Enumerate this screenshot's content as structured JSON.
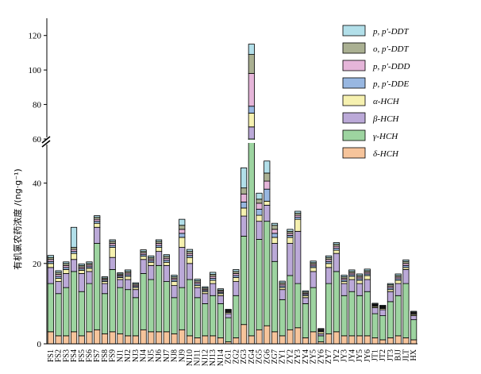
{
  "chart_data": {
    "type": "stacked-bar",
    "ylabel": "有机氯农药浓度 /(ng·g⁻¹)",
    "y_break": [
      50,
      60
    ],
    "ylim": [
      0,
      130
    ],
    "lower_ticks": [
      0,
      20,
      40
    ],
    "upper_ticks": [
      60,
      80,
      100,
      120
    ],
    "categories": [
      "FS1",
      "FS2",
      "FS3",
      "FS4",
      "FS5",
      "FS6",
      "FS7",
      "FS8",
      "FS9",
      "NJ1",
      "NJ2",
      "NJ3",
      "NJ4",
      "NJ5",
      "NJ6",
      "NJ7",
      "NJ8",
      "NJ9",
      "NJ10",
      "NJ11",
      "NJ12",
      "NJ13",
      "NJ14",
      "ZG1",
      "ZG2",
      "ZG3",
      "ZG4",
      "ZG5",
      "ZG6",
      "ZG7",
      "ZY1",
      "ZY2",
      "ZY3",
      "ZY4",
      "ZY5",
      "ZY6",
      "ZY7",
      "JY2",
      "JY3",
      "JY4",
      "JY5",
      "JY6",
      "JT1",
      "JT2",
      "JT3",
      "BJJ",
      "JLT",
      "HX"
    ],
    "series": [
      {
        "name": "δ-HCH",
        "label": "δ-HCH",
        "color": "#f6c49b",
        "values": [
          3.0,
          2.0,
          2.0,
          3.0,
          2.0,
          3.0,
          3.5,
          2.5,
          3.0,
          2.5,
          2.0,
          2.0,
          3.5,
          3.0,
          3.0,
          3.0,
          2.5,
          3.5,
          2.0,
          1.5,
          2.0,
          2.0,
          1.5,
          0.5,
          1.5,
          4.8,
          2.0,
          3.5,
          4.5,
          3.0,
          2.0,
          3.5,
          4.0,
          1.5,
          3.0,
          0.5,
          2.5,
          3.0,
          2.0,
          2.0,
          2.0,
          2.0,
          1.5,
          1.0,
          1.5,
          2.0,
          1.5,
          1.0
        ]
      },
      {
        "name": "γ-HCH",
        "label": "γ-HCH",
        "color": "#9dd4a0",
        "values": [
          12.0,
          10.5,
          12.0,
          15.0,
          11.0,
          12.0,
          21.5,
          10.0,
          15.5,
          11.5,
          11.5,
          9.5,
          14.0,
          13.0,
          16.5,
          12.5,
          9.0,
          10.5,
          14.0,
          10.0,
          8.0,
          10.0,
          8.5,
          6.0,
          10.5,
          22.0,
          58.0,
          22.5,
          26.0,
          17.5,
          9.0,
          13.5,
          11.0,
          8.5,
          11.0,
          1.5,
          12.5,
          15.0,
          10.0,
          11.0,
          10.0,
          11.0,
          6.0,
          6.0,
          9.0,
          10.0,
          13.5,
          5.0
        ]
      },
      {
        "name": "β-HCH",
        "label": "β-HCH",
        "color": "#bba9d8",
        "values": [
          4.0,
          3.0,
          3.5,
          3.0,
          4.5,
          3.0,
          4.0,
          2.5,
          3.0,
          2.0,
          2.5,
          2.0,
          3.5,
          3.5,
          3.5,
          4.0,
          3.0,
          10.0,
          4.0,
          2.5,
          2.5,
          3.0,
          2.0,
          1.0,
          3.5,
          5.0,
          7.0,
          4.5,
          4.0,
          4.5,
          2.5,
          8.0,
          13.0,
          1.5,
          4.0,
          0.5,
          4.0,
          4.5,
          3.0,
          3.0,
          3.0,
          3.0,
          1.5,
          1.5,
          2.5,
          3.0,
          3.5,
          1.0
        ]
      },
      {
        "name": "α-HCH",
        "label": "α-HCH",
        "color": "#f6f1b0",
        "values": [
          1.0,
          0.8,
          1.0,
          1.5,
          0.8,
          0.8,
          1.0,
          0.5,
          2.5,
          0.5,
          0.8,
          0.5,
          0.8,
          0.8,
          1.0,
          0.8,
          1.0,
          2.5,
          1.5,
          0.5,
          0.5,
          0.8,
          0.5,
          0.3,
          1.0,
          2.0,
          8.0,
          1.5,
          1.0,
          1.5,
          0.5,
          1.5,
          3.0,
          0.5,
          1.0,
          0.5,
          1.0,
          0.8,
          0.5,
          0.8,
          0.8,
          1.0,
          0.3,
          0.3,
          0.5,
          0.8,
          0.5,
          0.3
        ]
      },
      {
        "name": "p,p'-DDE",
        "label": "p, p′-DDE",
        "color": "#98b7e1",
        "values": [
          0.5,
          0.5,
          0.5,
          0.5,
          0.4,
          0.4,
          0.5,
          0.3,
          0.5,
          0.3,
          0.4,
          0.3,
          0.4,
          0.4,
          0.5,
          0.5,
          0.4,
          1.0,
          0.5,
          0.4,
          0.3,
          0.5,
          0.3,
          0.2,
          0.5,
          1.5,
          4.0,
          1.5,
          3.0,
          1.0,
          0.4,
          0.5,
          0.5,
          0.3,
          0.4,
          0.2,
          0.5,
          0.5,
          0.4,
          0.4,
          0.4,
          0.4,
          0.2,
          0.2,
          0.4,
          0.4,
          0.5,
          0.2
        ]
      },
      {
        "name": "p,p'-DDD",
        "label": "p, p′-DDD",
        "color": "#e5b5d9",
        "values": [
          0.5,
          0.5,
          0.5,
          0.5,
          0.4,
          0.4,
          0.5,
          0.3,
          0.5,
          0.3,
          0.4,
          0.3,
          0.4,
          0.4,
          0.5,
          0.5,
          0.4,
          1.0,
          0.5,
          0.4,
          0.3,
          0.5,
          0.3,
          0.2,
          0.5,
          2.0,
          19.0,
          1.5,
          2.0,
          1.0,
          0.4,
          0.5,
          0.5,
          0.3,
          0.4,
          0.2,
          0.5,
          0.5,
          0.4,
          0.4,
          0.4,
          0.4,
          0.2,
          0.2,
          0.4,
          0.4,
          0.5,
          0.2
        ]
      },
      {
        "name": "o,p'-DDT",
        "label": "o, p′-DDT",
        "color": "#aab092",
        "values": [
          0.5,
          0.5,
          0.5,
          0.5,
          0.4,
          0.4,
          0.5,
          0.3,
          0.5,
          0.3,
          0.4,
          0.3,
          0.4,
          0.4,
          0.5,
          0.5,
          0.4,
          1.0,
          0.5,
          0.4,
          0.3,
          0.5,
          0.3,
          0.2,
          0.5,
          1.5,
          11.0,
          1.0,
          2.0,
          1.0,
          0.4,
          0.5,
          0.5,
          0.3,
          0.4,
          0.2,
          0.5,
          0.5,
          0.4,
          0.4,
          0.4,
          0.4,
          0.2,
          0.2,
          0.4,
          0.4,
          0.5,
          0.2
        ]
      },
      {
        "name": "p,p'-DDT",
        "label": "p, p′-DDT",
        "color": "#b2dfe9",
        "values": [
          0.5,
          0.4,
          0.4,
          5.0,
          0.4,
          0.4,
          0.4,
          0.3,
          0.4,
          0.3,
          0.4,
          0.3,
          0.4,
          0.4,
          0.4,
          0.4,
          0.4,
          1.5,
          0.5,
          0.4,
          0.3,
          0.5,
          0.3,
          0.2,
          0.5,
          5.0,
          6.0,
          1.5,
          3.0,
          0.5,
          0.4,
          0.5,
          0.5,
          0.3,
          0.4,
          0.2,
          0.4,
          0.4,
          0.4,
          0.4,
          0.4,
          0.4,
          0.2,
          0.2,
          0.3,
          0.4,
          0.4,
          0.2
        ]
      }
    ],
    "legend_order": [
      "p,p'-DDT",
      "o,p'-DDT",
      "p,p'-DDD",
      "p,p'-DDE",
      "α-HCH",
      "β-HCH",
      "γ-HCH",
      "δ-HCH"
    ],
    "legend_position": "top-right"
  }
}
